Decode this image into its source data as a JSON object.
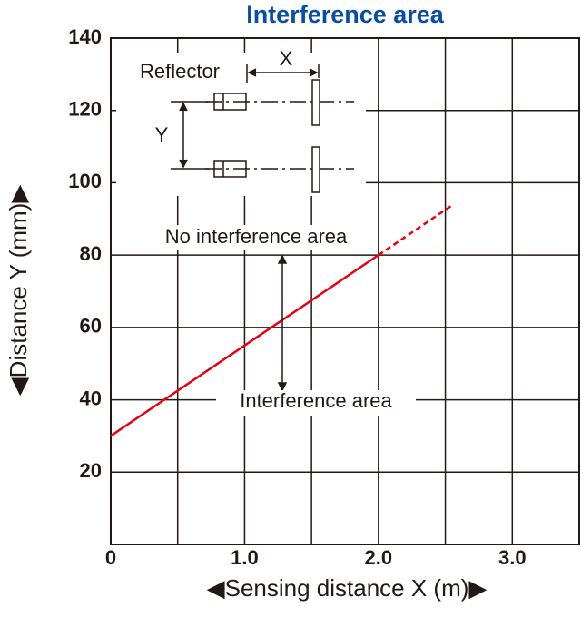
{
  "chart_data": {
    "type": "line",
    "title": "Interference area",
    "x_label": "◀Sensing distance X (m)▶",
    "y_label": "◀Distance Y (mm)▶",
    "xlim": [
      0,
      3.5
    ],
    "ylim": [
      0,
      140
    ],
    "xticks": [
      0,
      {
        "value": 1,
        "label": "1.0"
      },
      {
        "value": 2,
        "label": "2.0"
      },
      {
        "value": 3,
        "label": "3.0"
      }
    ],
    "xminor": [
      0.5,
      1.5,
      2.5,
      3.5
    ],
    "yticks": [
      20,
      40,
      60,
      80,
      100,
      120,
      140
    ],
    "grid": true,
    "series": [
      {
        "color": "#e60012",
        "style": "solid",
        "x": [
          0,
          2.0
        ],
        "values": [
          30,
          80
        ]
      },
      {
        "color": "#e60012",
        "style": "dashed",
        "x": [
          2.0,
          2.55
        ],
        "values": [
          80,
          93.75
        ]
      }
    ],
    "annotations": [
      "No interference area",
      "Interference area"
    ]
  },
  "inset": {
    "reflector": "Reflector",
    "x_label": "X",
    "y_label": "Y"
  }
}
